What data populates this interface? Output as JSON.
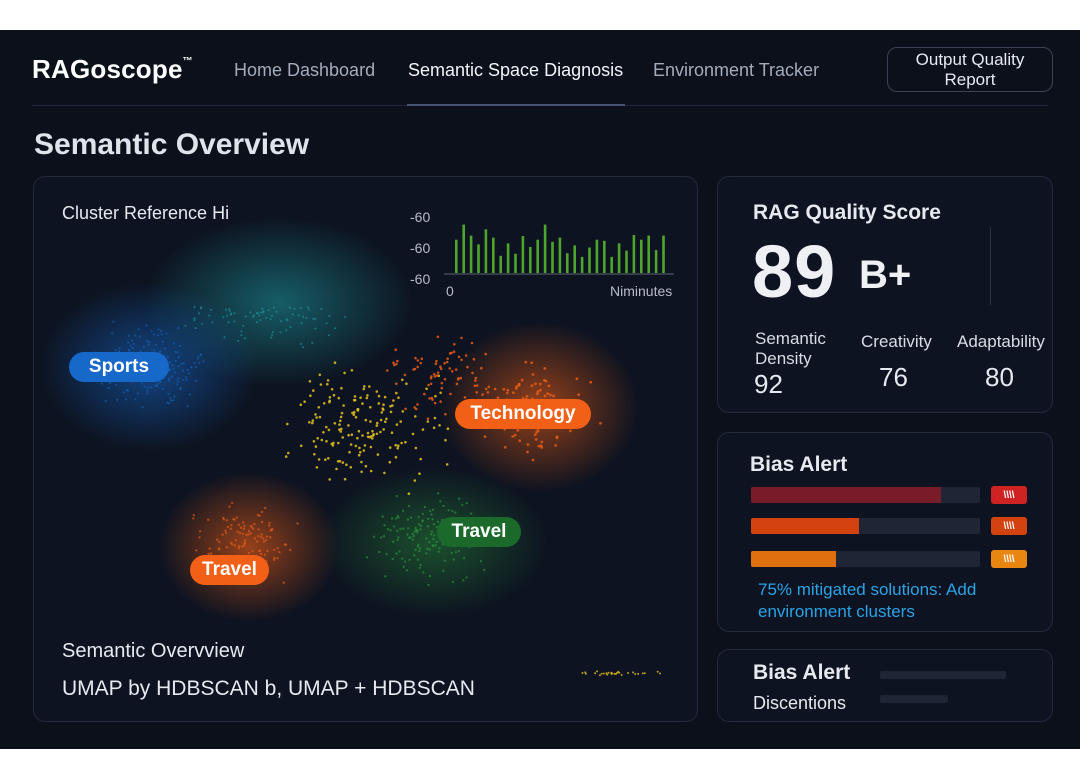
{
  "app": {
    "logo": "RAGoscope",
    "logo_mark": "™"
  },
  "nav": {
    "tabs": [
      {
        "label": "Home Dashboard",
        "active": false
      },
      {
        "label": "Semantic Space Diagnosis",
        "active": true
      },
      {
        "label": "Environment Tracker",
        "active": false
      }
    ],
    "report_button": "Output Quality Report"
  },
  "page": {
    "title": "Semantic Overview"
  },
  "cluster_panel": {
    "heading": "Cluster Reference Hi",
    "mini_chart": {
      "y_ticks": [
        "-60",
        "-60",
        "-60"
      ],
      "x_start": "0",
      "x_unit": "Niminutes",
      "bar_color": "#4ea52b",
      "bars": [
        0.64,
        0.93,
        0.72,
        0.55,
        0.84,
        0.68,
        0.33,
        0.57,
        0.37,
        0.71,
        0.5,
        0.64,
        0.93,
        0.6,
        0.68,
        0.38,
        0.53,
        0.31,
        0.49,
        0.64,
        0.62,
        0.31,
        0.57,
        0.43,
        0.73,
        0.64,
        0.72,
        0.44,
        0.72
      ]
    },
    "clusters": [
      {
        "label": "Sports",
        "color": "#1668c9"
      },
      {
        "label": "Technology",
        "color": "#f25f16"
      },
      {
        "label": "Travel",
        "color": "#1b6a2c"
      },
      {
        "label": "Travel",
        "color": "#f25f16"
      }
    ],
    "footer_title": "Semantic  Overvview",
    "footer_subtitle": "UMAP by HDBSCAN b, UMAP + HDBSCAN"
  },
  "quality_score": {
    "title": "RAG Quality Score",
    "score": "89",
    "grade": "B+",
    "metrics": [
      {
        "label": "Semantic Density",
        "value": "92"
      },
      {
        "label": "Creativity",
        "value": "76"
      },
      {
        "label": "Adaptability",
        "value": "80"
      }
    ]
  },
  "bias_alert": {
    "title": "Bias Alert",
    "bars": [
      {
        "fraction": 0.83,
        "fill": "#7a1b2a",
        "badge_color": "#cf2323"
      },
      {
        "fraction": 0.47,
        "fill": "#d2430f",
        "badge_color": "#d2430f"
      },
      {
        "fraction": 0.37,
        "fill": "#e0700f",
        "badge_color": "#e98511"
      }
    ],
    "badge_glyph": "\\\\\\\\",
    "note": "75% mitigated solutions: Add environment clusters"
  },
  "bias_alert_secondary": {
    "title": "Bias Alert",
    "subtitle": "Discentions"
  },
  "colors": {
    "background": "#0b101b",
    "panel": "#0d1320",
    "teal": "#1e9aa0",
    "blue": "#1668c9",
    "orange": "#f25f16",
    "green": "#2d9b3e",
    "yellow": "#e8c21d",
    "link": "#2aa3e6"
  }
}
